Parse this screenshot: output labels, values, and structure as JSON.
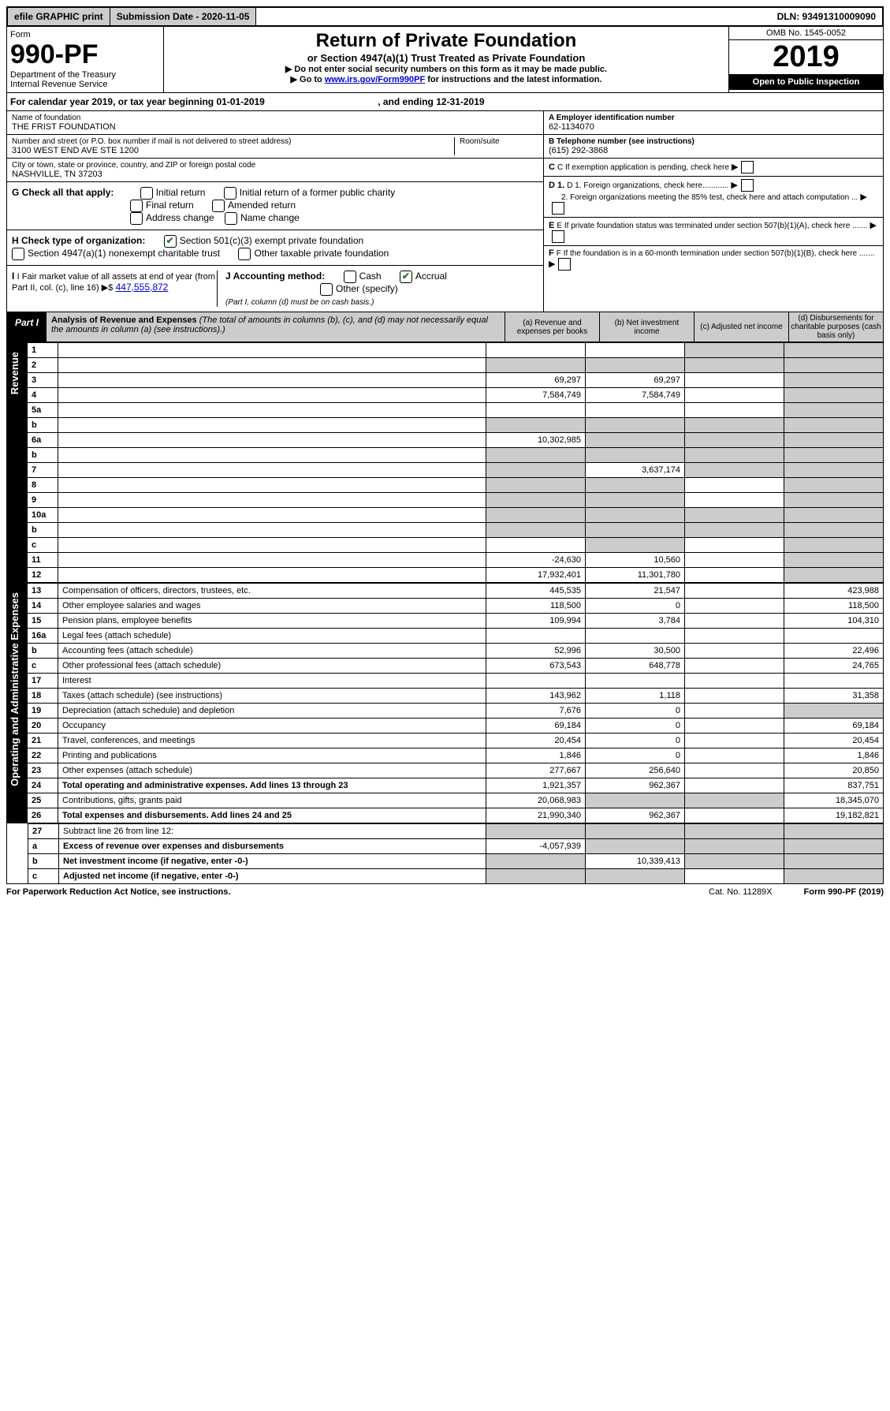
{
  "topbar": {
    "efile": "efile GRAPHIC print",
    "submission": "Submission Date - 2020-11-05",
    "dln": "DLN: 93491310009090"
  },
  "header": {
    "form_label": "Form",
    "form_num": "990-PF",
    "dept": "Department of the Treasury",
    "irs": "Internal Revenue Service",
    "title": "Return of Private Foundation",
    "subtitle": "or Section 4947(a)(1) Trust Treated as Private Foundation",
    "instr1": "▶ Do not enter social security numbers on this form as it may be made public.",
    "instr2_pre": "▶ Go to ",
    "instr2_link": "www.irs.gov/Form990PF",
    "instr2_post": " for instructions and the latest information.",
    "omb": "OMB No. 1545-0052",
    "year": "2019",
    "inspection": "Open to Public Inspection"
  },
  "calyear": {
    "pre": "For calendar year 2019, or tax year beginning ",
    "begin": "01-01-2019",
    "mid": " , and ending ",
    "end": "12-31-2019"
  },
  "id": {
    "name_lbl": "Name of foundation",
    "name": "THE FRIST FOUNDATION",
    "addr_lbl": "Number and street (or P.O. box number if mail is not delivered to street address)",
    "room_lbl": "Room/suite",
    "addr": "3100 WEST END AVE STE 1200",
    "city_lbl": "City or town, state or province, country, and ZIP or foreign postal code",
    "city": "NASHVILLE, TN  37203",
    "a_lbl": "A Employer identification number",
    "a_val": "62-1134070",
    "b_lbl": "B Telephone number (see instructions)",
    "b_val": "(615) 292-3868",
    "c_lbl": "C If exemption application is pending, check here",
    "d1_lbl": "D 1. Foreign organizations, check here............",
    "d2_lbl": "2. Foreign organizations meeting the 85% test, check here and attach computation ...",
    "e_lbl": "E  If private foundation status was terminated under section 507(b)(1)(A), check here .......",
    "f_lbl": "F  If the foundation is in a 60-month termination under section 507(b)(1)(B), check here .......",
    "g_lbl": "G Check all that apply:",
    "g_opts": [
      "Initial return",
      "Initial return of a former public charity",
      "Final return",
      "Amended return",
      "Address change",
      "Name change"
    ],
    "h_lbl": "H Check type of organization:",
    "h1": "Section 501(c)(3) exempt private foundation",
    "h2": "Section 4947(a)(1) nonexempt charitable trust",
    "h3": "Other taxable private foundation",
    "i_lbl": "I Fair market value of all assets at end of year (from Part II, col. (c), line 16) ▶$",
    "i_val": "447,555,872",
    "j_lbl": "J Accounting method:",
    "j_cash": "Cash",
    "j_accrual": "Accrual",
    "j_other": "Other (specify)",
    "j_note": "(Part I, column (d) must be on cash basis.)"
  },
  "part1": {
    "tag": "Part I",
    "title": "Analysis of Revenue and Expenses",
    "note": " (The total of amounts in columns (b), (c), and (d) may not necessarily equal the amounts in column (a) (see instructions).)",
    "cols": {
      "a": "(a) Revenue and expenses per books",
      "b": "(b) Net investment income",
      "c": "(c) Adjusted net income",
      "d": "(d) Disbursements for charitable purposes (cash basis only)"
    }
  },
  "side": {
    "rev": "Revenue",
    "exp": "Operating and Administrative Expenses"
  },
  "rows": [
    {
      "n": "1",
      "d": "",
      "a": "",
      "b": "",
      "c": "",
      "sh": [
        "c",
        "d"
      ]
    },
    {
      "n": "2",
      "d": "",
      "a": "",
      "b": "",
      "c": "",
      "sh": [
        "a",
        "b",
        "c",
        "d"
      ]
    },
    {
      "n": "3",
      "d": "",
      "a": "69,297",
      "b": "69,297",
      "c": "",
      "sh": [
        "d"
      ]
    },
    {
      "n": "4",
      "d": "",
      "a": "7,584,749",
      "b": "7,584,749",
      "c": "",
      "sh": [
        "d"
      ]
    },
    {
      "n": "5a",
      "d": "",
      "a": "",
      "b": "",
      "c": "",
      "sh": [
        "d"
      ]
    },
    {
      "n": "b",
      "d": "",
      "a": "",
      "b": "",
      "c": "",
      "sh": [
        "a",
        "b",
        "c",
        "d"
      ]
    },
    {
      "n": "6a",
      "d": "",
      "a": "10,302,985",
      "b": "",
      "c": "",
      "sh": [
        "b",
        "c",
        "d"
      ]
    },
    {
      "n": "b",
      "d": "",
      "a": "",
      "b": "",
      "c": "",
      "sh": [
        "a",
        "b",
        "c",
        "d"
      ]
    },
    {
      "n": "7",
      "d": "",
      "a": "",
      "b": "3,637,174",
      "c": "",
      "sh": [
        "a",
        "c",
        "d"
      ]
    },
    {
      "n": "8",
      "d": "",
      "a": "",
      "b": "",
      "c": "",
      "sh": [
        "a",
        "b",
        "d"
      ]
    },
    {
      "n": "9",
      "d": "",
      "a": "",
      "b": "",
      "c": "",
      "sh": [
        "a",
        "b",
        "d"
      ]
    },
    {
      "n": "10a",
      "d": "",
      "a": "",
      "b": "",
      "c": "",
      "sh": [
        "a",
        "b",
        "c",
        "d"
      ]
    },
    {
      "n": "b",
      "d": "",
      "a": "",
      "b": "",
      "c": "",
      "sh": [
        "a",
        "b",
        "c",
        "d"
      ]
    },
    {
      "n": "c",
      "d": "",
      "a": "",
      "b": "",
      "c": "",
      "sh": [
        "b",
        "d"
      ]
    },
    {
      "n": "11",
      "d": "",
      "a": "-24,630",
      "b": "10,560",
      "c": "",
      "sh": [
        "d"
      ]
    },
    {
      "n": "12",
      "d": "",
      "a": "17,932,401",
      "b": "11,301,780",
      "c": "",
      "sh": [
        "d"
      ],
      "bold": true
    }
  ],
  "exp_rows": [
    {
      "n": "13",
      "d": "423,988",
      "a": "445,535",
      "b": "21,547",
      "c": ""
    },
    {
      "n": "14",
      "d": "118,500",
      "a": "118,500",
      "b": "0",
      "c": ""
    },
    {
      "n": "15",
      "d": "104,310",
      "a": "109,994",
      "b": "3,784",
      "c": ""
    },
    {
      "n": "16a",
      "d": "",
      "a": "",
      "b": "",
      "c": ""
    },
    {
      "n": "b",
      "d": "22,496",
      "a": "52,996",
      "b": "30,500",
      "c": ""
    },
    {
      "n": "c",
      "d": "24,765",
      "a": "673,543",
      "b": "648,778",
      "c": ""
    },
    {
      "n": "17",
      "d": "",
      "a": "",
      "b": "",
      "c": ""
    },
    {
      "n": "18",
      "d": "31,358",
      "a": "143,962",
      "b": "1,118",
      "c": ""
    },
    {
      "n": "19",
      "d": "",
      "a": "7,676",
      "b": "0",
      "c": "",
      "sh": [
        "d"
      ]
    },
    {
      "n": "20",
      "d": "69,184",
      "a": "69,184",
      "b": "0",
      "c": ""
    },
    {
      "n": "21",
      "d": "20,454",
      "a": "20,454",
      "b": "0",
      "c": ""
    },
    {
      "n": "22",
      "d": "1,846",
      "a": "1,846",
      "b": "0",
      "c": ""
    },
    {
      "n": "23",
      "d": "20,850",
      "a": "277,667",
      "b": "256,640",
      "c": ""
    },
    {
      "n": "24",
      "d": "837,751",
      "a": "1,921,357",
      "b": "962,367",
      "c": "",
      "bold": true
    },
    {
      "n": "25",
      "d": "18,345,070",
      "a": "20,068,983",
      "b": "",
      "c": "",
      "sh": [
        "b",
        "c"
      ]
    },
    {
      "n": "26",
      "d": "19,182,821",
      "a": "21,990,340",
      "b": "962,367",
      "c": "",
      "bold": true
    }
  ],
  "bottom_rows": [
    {
      "n": "27",
      "d": "",
      "a": "",
      "b": "",
      "c": "",
      "sh": [
        "a",
        "b",
        "c",
        "d"
      ]
    },
    {
      "n": "a",
      "d": "",
      "a": "-4,057,939",
      "b": "",
      "c": "",
      "sh": [
        "b",
        "c",
        "d"
      ],
      "bold": true
    },
    {
      "n": "b",
      "d": "",
      "a": "",
      "b": "10,339,413",
      "c": "",
      "sh": [
        "a",
        "c",
        "d"
      ],
      "bold": true
    },
    {
      "n": "c",
      "d": "",
      "a": "",
      "b": "",
      "c": "",
      "sh": [
        "a",
        "b",
        "d"
      ],
      "bold": true
    }
  ],
  "footer": {
    "left": "For Paperwork Reduction Act Notice, see instructions.",
    "cat": "Cat. No. 11289X",
    "right": "Form 990-PF (2019)"
  }
}
